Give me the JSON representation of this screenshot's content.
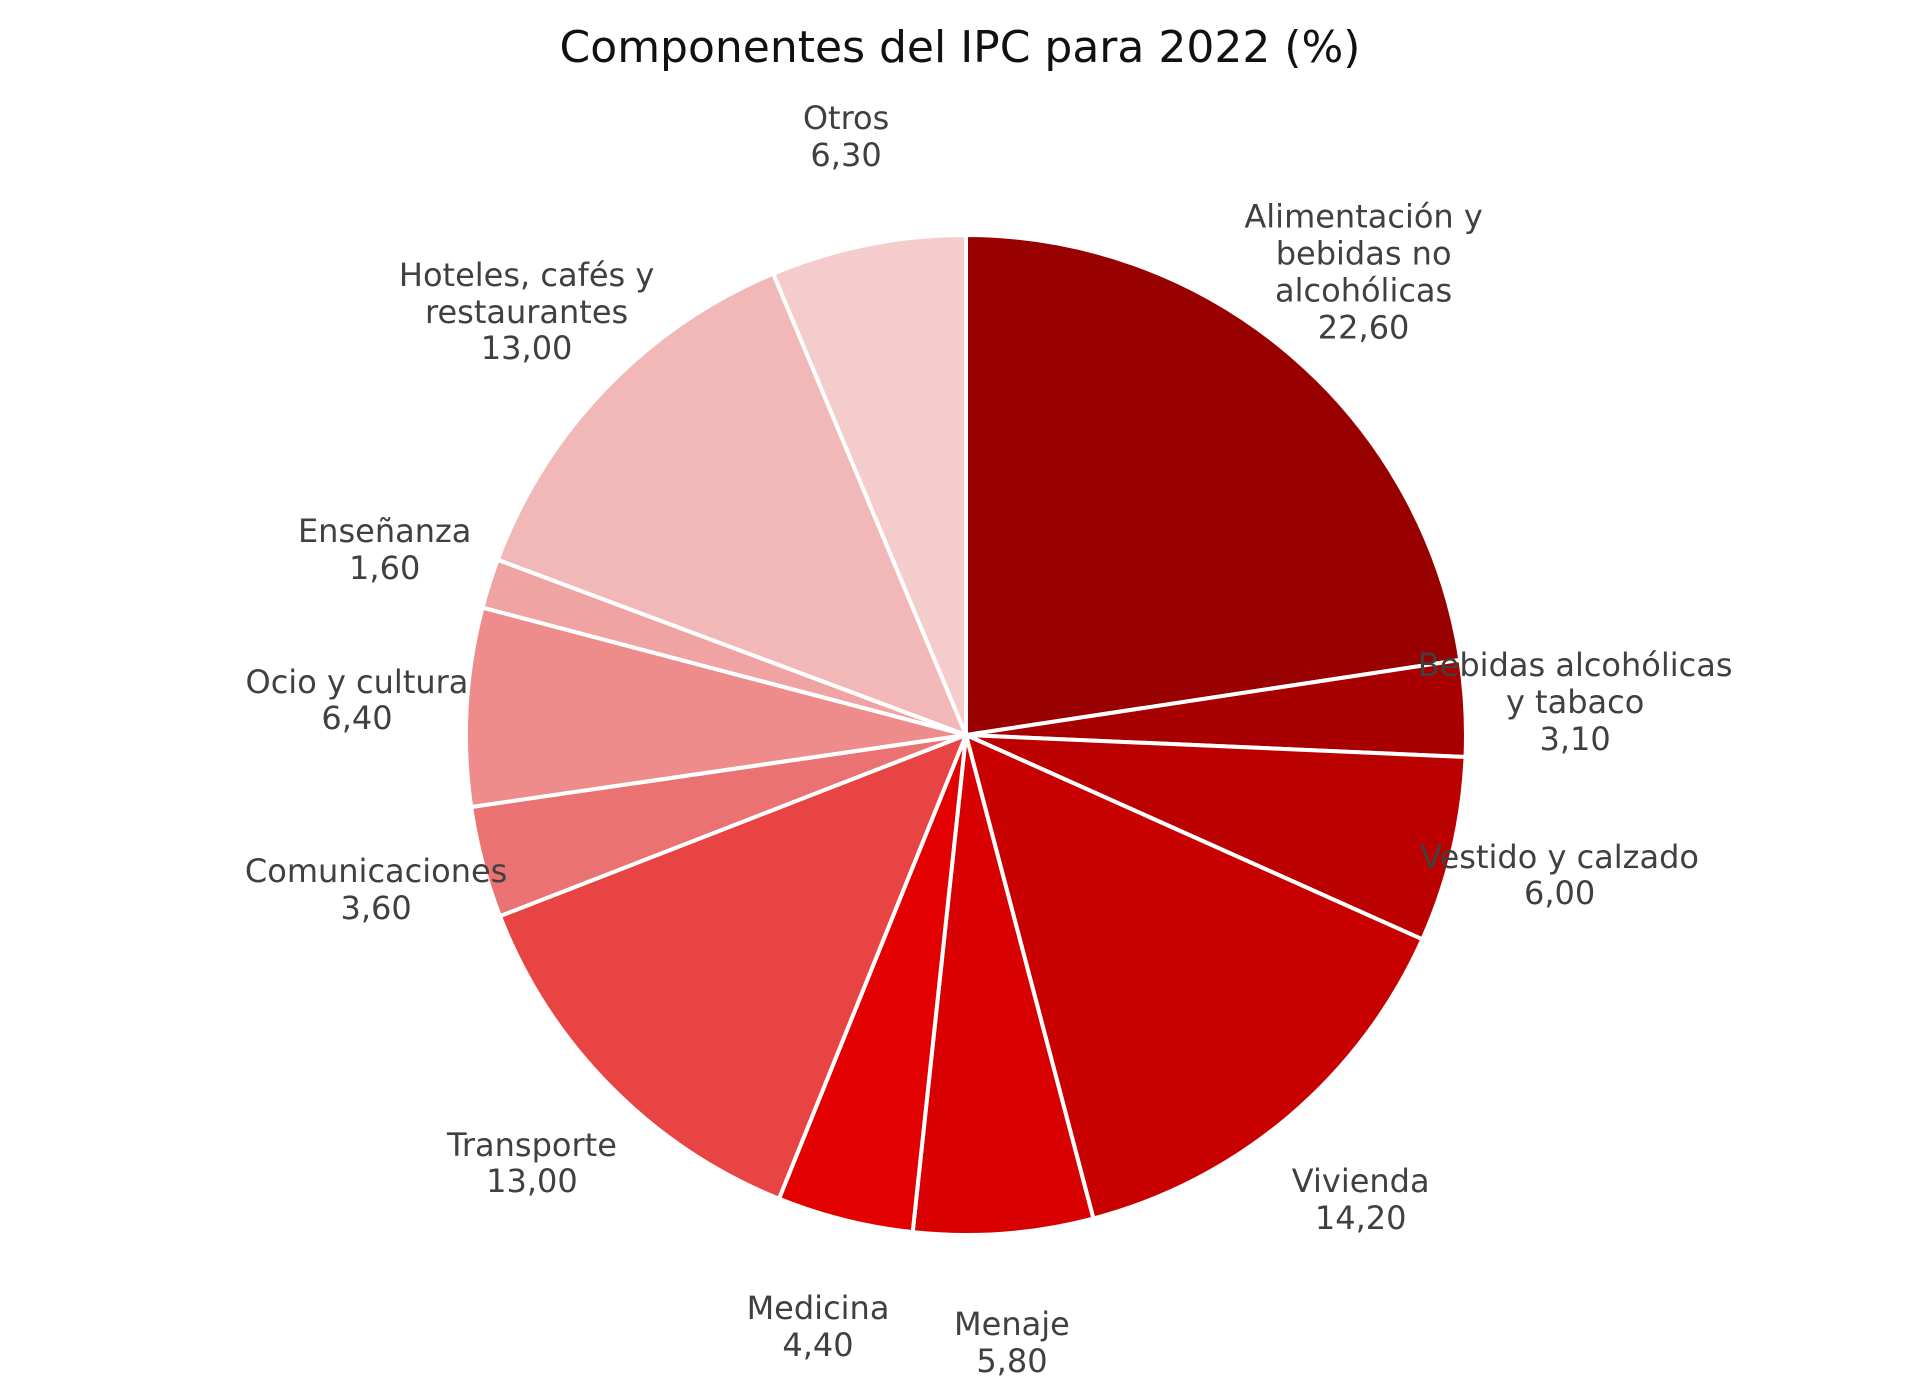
{
  "chart_data": {
    "type": "pie",
    "title": "Componentes del IPC para 2022 (%)",
    "categories": [
      "Alimentación y bebidas no alcohólicas",
      "Bebidas alcohólicas y tabaco",
      "Vestido y calzado",
      "Vivienda",
      "Menaje",
      "Medicina",
      "Transporte",
      "Comunicaciones",
      "Ocio y cultura",
      "Enseñanza",
      "Hoteles, cafés y restaurantes",
      "Otros"
    ],
    "values": [
      22.6,
      3.1,
      6.0,
      14.2,
      5.8,
      4.4,
      13.0,
      3.6,
      6.4,
      1.6,
      13.0,
      6.3
    ],
    "value_labels": [
      "22,60",
      "3,10",
      "6,00",
      "14,20",
      "5,80",
      "4,40",
      "13,00",
      "3,60",
      "6,40",
      "1,60",
      "13,00",
      "6,30"
    ],
    "colors": [
      "#990000",
      "#a80000",
      "#bb0000",
      "#c80000",
      "#d80000",
      "#e30000",
      "#e84444",
      "#eb7272",
      "#ee8c8c",
      "#efa3a3",
      "#f2b8b8",
      "#f5cccc"
    ]
  }
}
